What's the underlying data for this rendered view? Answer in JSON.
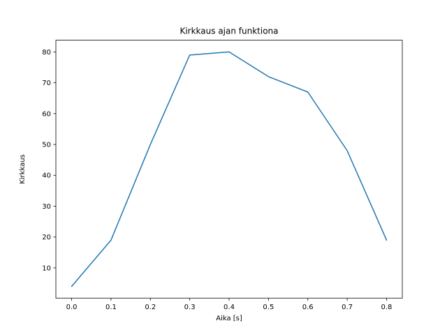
{
  "chart_data": {
    "type": "line",
    "title": "Kirkkaus ajan funktiona",
    "xlabel": "Aika [s]",
    "ylabel": "Kirkkaus",
    "x": [
      0.0,
      0.1,
      0.2,
      0.3,
      0.4,
      0.5,
      0.6,
      0.7,
      0.8
    ],
    "y": [
      4,
      19,
      50,
      79,
      80,
      72,
      67,
      48,
      19
    ],
    "xticks": [
      0.0,
      0.1,
      0.2,
      0.3,
      0.4,
      0.5,
      0.6,
      0.7,
      0.8
    ],
    "xtick_labels": [
      "0.0",
      "0.1",
      "0.2",
      "0.3",
      "0.4",
      "0.5",
      "0.6",
      "0.7",
      "0.8"
    ],
    "yticks": [
      10,
      20,
      30,
      40,
      50,
      60,
      70,
      80
    ],
    "ytick_labels": [
      "10",
      "20",
      "30",
      "40",
      "50",
      "60",
      "70",
      "80"
    ],
    "xlim": [
      -0.04,
      0.84
    ],
    "ylim": [
      0.2,
      83.8
    ],
    "line_color": "#1f77b4",
    "spine_color": "#000000",
    "grid": false,
    "legend_position": "none"
  }
}
